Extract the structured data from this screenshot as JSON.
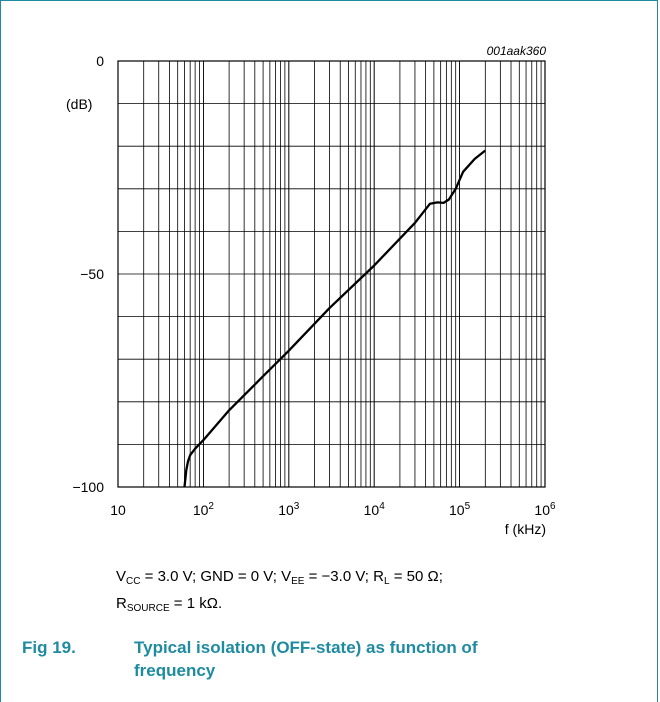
{
  "chart_data": {
    "type": "line",
    "figure_id": "001aak360",
    "xlabel": "f (kHz)",
    "ylabel": "(dB)",
    "xscale": "log",
    "xlim": [
      10,
      1000000
    ],
    "ylim": [
      -100,
      0
    ],
    "x_ticks": [
      {
        "base": "10",
        "exp": ""
      },
      {
        "base": "10",
        "exp": "2"
      },
      {
        "base": "10",
        "exp": "3"
      },
      {
        "base": "10",
        "exp": "4"
      },
      {
        "base": "10",
        "exp": "5"
      },
      {
        "base": "10",
        "exp": "6"
      }
    ],
    "y_ticks": [
      "0",
      "−50",
      "−100"
    ],
    "grid": true,
    "series": [
      {
        "x": [
          60,
          63,
          66,
          70,
          80,
          100,
          200,
          500,
          1000,
          3000,
          10000,
          30000,
          45000,
          55000,
          65000,
          75000,
          90000,
          110000,
          150000,
          200000
        ],
        "y": [
          -100,
          -96,
          -94,
          -92.5,
          -91,
          -89,
          -82,
          -74,
          -68,
          -58,
          -48,
          -38,
          -33.5,
          -33.2,
          -33.3,
          -32.5,
          -30,
          -26,
          -23,
          -21
        ]
      }
    ]
  },
  "conditions": {
    "line1": {
      "v": "V",
      "vcc_sub": "CC",
      "t1": " = 3.0 V; GND = 0 V; ",
      "vee_v": "V",
      "vee_sub": "EE",
      "t2": " = −3.0 V; ",
      "rl_r": "R",
      "rl_sub": "L",
      "t3": " = 50 Ω;"
    },
    "line2": {
      "r": "R",
      "sub": "SOURCE",
      "t": " = 1 kΩ."
    }
  },
  "caption": {
    "number": "Fig 19.",
    "title_line1": "Typical isolation (OFF-state) as function of",
    "title_line2": "frequency"
  }
}
